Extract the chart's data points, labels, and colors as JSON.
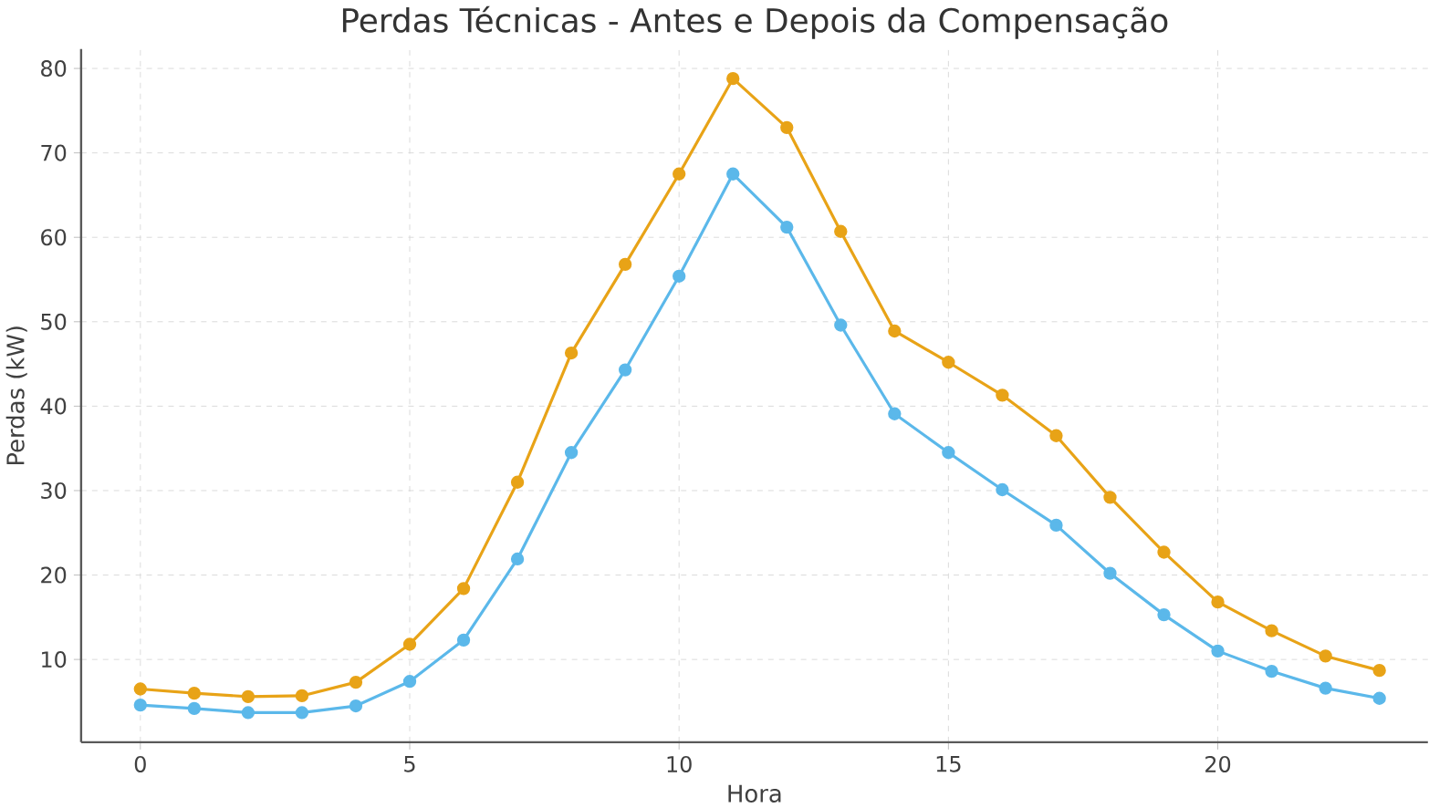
{
  "chart_data": {
    "type": "line",
    "title": "Perdas Técnicas - Antes e Depois da Compensação",
    "xlabel": "Hora",
    "ylabel": "Perdas (kW)",
    "x": [
      0,
      1,
      2,
      3,
      4,
      5,
      6,
      7,
      8,
      9,
      10,
      11,
      12,
      13,
      14,
      15,
      16,
      17,
      18,
      19,
      20,
      21,
      22,
      23
    ],
    "series": [
      {
        "color": "#e8a317",
        "values": [
          6.5,
          6.0,
          5.6,
          5.7,
          7.3,
          11.8,
          18.4,
          31,
          46.3,
          56.8,
          67.5,
          78.8,
          73,
          60.7,
          48.9,
          45.2,
          41.3,
          36.5,
          29.2,
          22.7,
          16.8,
          13.4,
          10.4,
          8.7
        ]
      },
      {
        "color": "#5bb8ea",
        "values": [
          4.6,
          4.2,
          3.7,
          3.7,
          4.5,
          7.4,
          12.3,
          21.9,
          34.5,
          44.3,
          55.4,
          67.5,
          61.2,
          49.6,
          39.1,
          34.5,
          30.1,
          25.9,
          20.2,
          15.3,
          11.0,
          8.6,
          6.6,
          5.4
        ]
      }
    ],
    "xlim": [
      -1.1,
      23.9
    ],
    "ylim": [
      0.2,
      82.3
    ],
    "xticks": [
      0,
      5,
      10,
      15,
      20
    ],
    "yticks": [
      10,
      20,
      30,
      40,
      50,
      60,
      70,
      80
    ],
    "grid": true,
    "marker": "circle",
    "line_style": "solid"
  }
}
